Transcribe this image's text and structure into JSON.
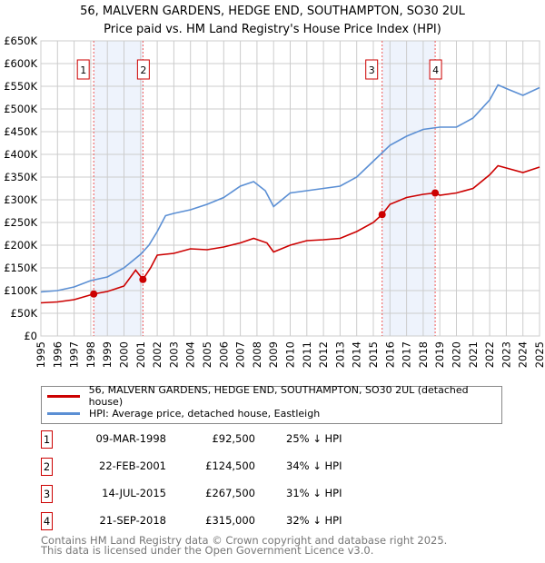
{
  "chart_data": {
    "type": "line",
    "title": "56, MALVERN GARDENS, HEDGE END, SOUTHAMPTON, SO30 2UL",
    "subtitle": "Price paid vs. HM Land Registry's House Price Index (HPI)",
    "xlim": [
      1995,
      2025
    ],
    "ylim": [
      0,
      650000
    ],
    "x_ticks": [
      "1995",
      "1996",
      "1997",
      "1998",
      "1999",
      "2000",
      "2001",
      "2002",
      "2003",
      "2004",
      "2005",
      "2006",
      "2007",
      "2008",
      "2009",
      "2010",
      "2011",
      "2012",
      "2013",
      "2014",
      "2015",
      "2016",
      "2017",
      "2018",
      "2019",
      "2020",
      "2021",
      "2022",
      "2023",
      "2024",
      "2025"
    ],
    "y_ticks": [
      {
        "v": 0,
        "label": "£0"
      },
      {
        "v": 50000,
        "label": "£50K"
      },
      {
        "v": 100000,
        "label": "£100K"
      },
      {
        "v": 150000,
        "label": "£150K"
      },
      {
        "v": 200000,
        "label": "£200K"
      },
      {
        "v": 250000,
        "label": "£250K"
      },
      {
        "v": 300000,
        "label": "£300K"
      },
      {
        "v": 350000,
        "label": "£350K"
      },
      {
        "v": 400000,
        "label": "£400K"
      },
      {
        "v": 450000,
        "label": "£450K"
      },
      {
        "v": 500000,
        "label": "£500K"
      },
      {
        "v": 550000,
        "label": "£550K"
      },
      {
        "v": 600000,
        "label": "£600K"
      },
      {
        "v": 650000,
        "label": "£650K"
      }
    ],
    "grid": true,
    "series": [
      {
        "name": "56, MALVERN GARDENS, HEDGE END, SOUTHAMPTON, SO30 2UL (detached house)",
        "color": "#cc0000",
        "x": [
          1995,
          1996,
          1997,
          1998.18,
          1999,
          2000,
          2000.7,
          2001.14,
          2001.6,
          2002,
          2003,
          2004,
          2005,
          2006,
          2007,
          2007.8,
          2008.6,
          2009,
          2010,
          2011,
          2012,
          2013,
          2014,
          2015,
          2015.53,
          2016,
          2017,
          2018,
          2018.72,
          2019,
          2020,
          2021,
          2022,
          2022.5,
          2023,
          2024,
          2025
        ],
        "y": [
          73000,
          75000,
          80000,
          92500,
          98000,
          110000,
          145000,
          124500,
          150000,
          178000,
          182000,
          192000,
          190000,
          196000,
          205000,
          215000,
          205000,
          185000,
          200000,
          210000,
          212000,
          215000,
          230000,
          250000,
          267500,
          290000,
          305000,
          312000,
          315000,
          310000,
          315000,
          325000,
          355000,
          375000,
          370000,
          360000,
          372000
        ]
      },
      {
        "name": "HPI: Average price, detached house, Eastleigh",
        "color": "#5b8fd4",
        "x": [
          1995,
          1996,
          1997,
          1998,
          1999,
          2000,
          2001,
          2001.5,
          2002,
          2002.5,
          2003,
          2004,
          2005,
          2006,
          2007,
          2007.8,
          2008.5,
          2009,
          2010,
          2011,
          2012,
          2013,
          2014,
          2015,
          2016,
          2017,
          2018,
          2019,
          2020,
          2021,
          2022,
          2022.5,
          2023,
          2024,
          2025
        ],
        "y": [
          97000,
          100000,
          108000,
          122000,
          130000,
          150000,
          180000,
          200000,
          230000,
          265000,
          270000,
          278000,
          290000,
          305000,
          330000,
          340000,
          320000,
          285000,
          315000,
          320000,
          325000,
          330000,
          350000,
          385000,
          420000,
          440000,
          455000,
          460000,
          460000,
          480000,
          520000,
          553000,
          545000,
          530000,
          547000
        ]
      }
    ],
    "sales": [
      {
        "label": "1",
        "x": 1998.18,
        "y": 92500,
        "date": "09-MAR-1998",
        "price": "£92,500",
        "hpi": "25% ↓ HPI"
      },
      {
        "label": "2",
        "x": 2001.14,
        "y": 124500,
        "date": "22-FEB-2001",
        "price": "£124,500",
        "hpi": "34% ↓ HPI"
      },
      {
        "label": "3",
        "x": 2015.53,
        "y": 267500,
        "date": "14-JUL-2015",
        "price": "£267,500",
        "hpi": "31% ↓ HPI"
      },
      {
        "label": "4",
        "x": 2018.72,
        "y": 315000,
        "date": "21-SEP-2018",
        "price": "£315,000",
        "hpi": "32% ↓ HPI"
      }
    ],
    "shaded_ranges": [
      [
        1998.18,
        2001.14
      ],
      [
        2015.53,
        2018.72
      ]
    ]
  },
  "footer": {
    "line1": "Contains HM Land Registry data © Crown copyright and database right 2025.",
    "line2": "This data is licensed under the Open Government Licence v3.0."
  }
}
